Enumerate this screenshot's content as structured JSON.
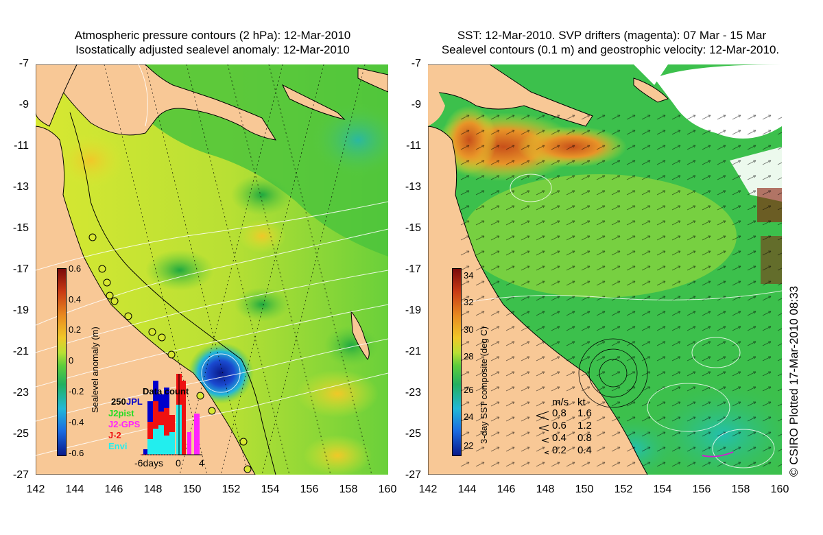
{
  "left_panel": {
    "title_line1": "Atmospheric pressure contours (2 hPa): 12-Mar-2010",
    "title_line2": "Isostatically adjusted sealevel anomaly: 12-Mar-2010",
    "colorbar": {
      "label": "Sealevel anomaly (m)",
      "ticks": [
        "0.6",
        "0.4",
        "0.2",
        "0",
        "-0.2",
        "-0.4",
        "-0.6"
      ],
      "range": [
        -0.6,
        0.6
      ]
    },
    "inset": {
      "title": "Data count",
      "value_label": "250",
      "legend": [
        {
          "name": "JPL",
          "color": "#0000cc"
        },
        {
          "name": "J2pist",
          "color": "#22dd22"
        },
        {
          "name": "J2-GPS",
          "color": "#ff22ff"
        },
        {
          "name": "J-2",
          "color": "#ee1111"
        },
        {
          "name": "Envi",
          "color": "#22eeee"
        }
      ],
      "xlabels": [
        "-6days",
        "0",
        "4"
      ]
    }
  },
  "right_panel": {
    "title_line1": "SST: 12-Mar-2010. SVP drifters (magenta): 07 Mar - 15 Mar",
    "title_line2": "Sealevel contours (0.1 m) and geostrophic velocity: 12-Mar-2010.",
    "colorbar": {
      "label": "3-day SST composite (deg C)",
      "ticks": [
        "34",
        "32",
        "30",
        "28",
        "26",
        "24",
        "22"
      ],
      "range": [
        21,
        35
      ]
    },
    "velocity_legend": {
      "header_ms": "m/s",
      "header_kt": "kt",
      "rows": [
        {
          "ms": "0.8",
          "kt": "1.6"
        },
        {
          "ms": "0.6",
          "kt": "1.2"
        },
        {
          "ms": "0.4",
          "kt": "0.8"
        },
        {
          "ms": "0.2",
          "kt": "0.4"
        }
      ]
    }
  },
  "axes": {
    "lat_ticks": [
      "-7",
      "-9",
      "-11",
      "-13",
      "-15",
      "-17",
      "-19",
      "-21",
      "-23",
      "-25",
      "-27"
    ],
    "lon_ticks": [
      "142",
      "144",
      "146",
      "148",
      "150",
      "152",
      "154",
      "156",
      "158",
      "160"
    ]
  },
  "footer": "© CSIRO Plotted 17-Mar-2010 08:33",
  "colors": {
    "land": "#f8c896",
    "ocean_green": "#5ccc3c",
    "ocean_yellow": "#d8e832",
    "low_blue": "#0a1f9a",
    "warm_orange": "#d8781e"
  }
}
